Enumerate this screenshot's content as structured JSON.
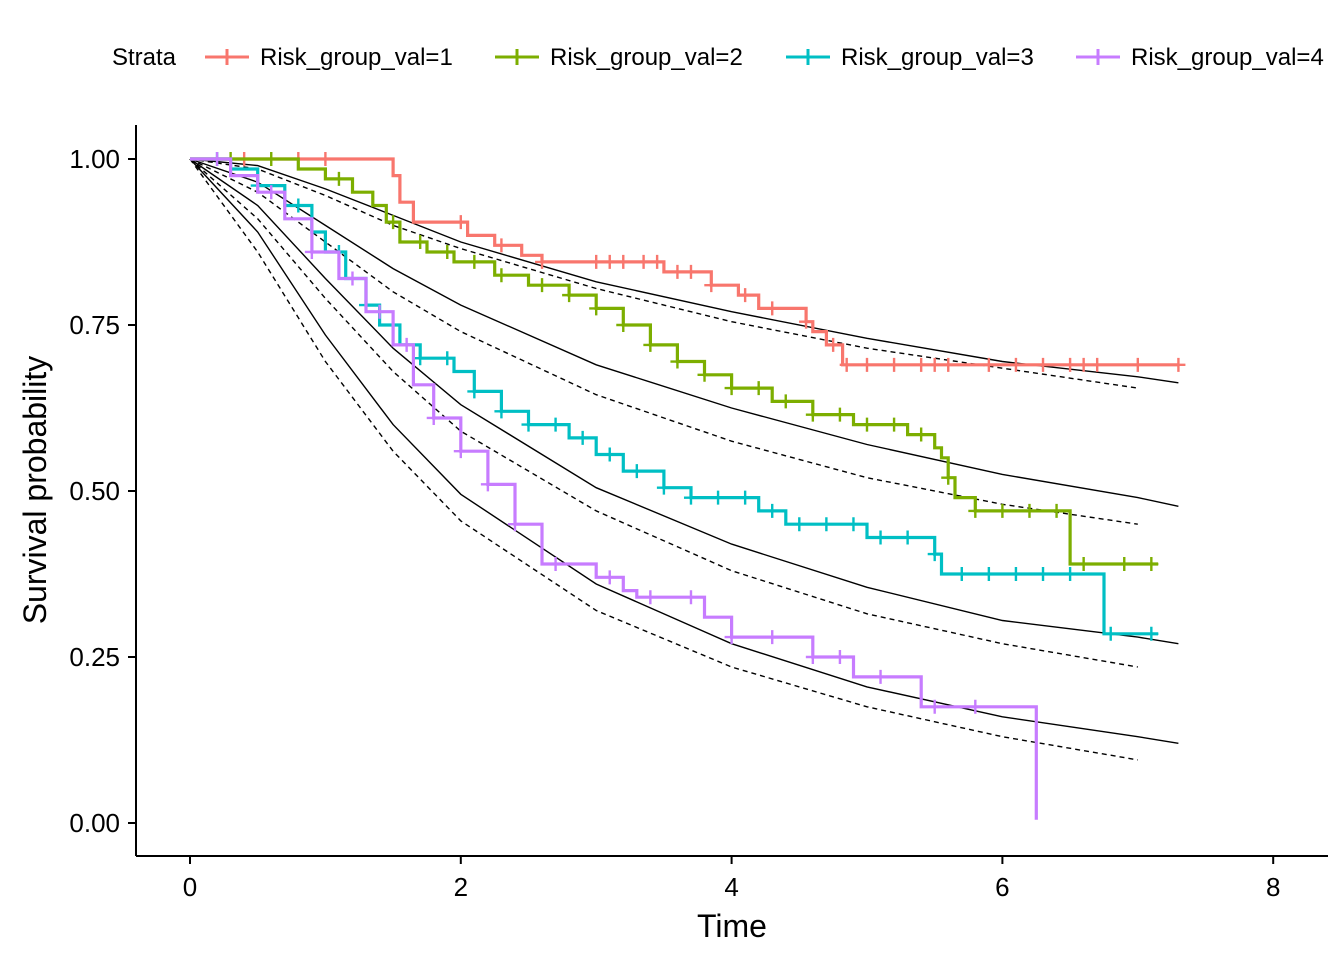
{
  "chart_data": {
    "type": "line",
    "subtype": "kaplan-meier survival curves with fitted parametric curves",
    "xlabel": "Time",
    "ylabel": "Survival probability",
    "xlim": [
      -0.4,
      8.4
    ],
    "ylim": [
      -0.05,
      1.05
    ],
    "x_ticks": [
      0,
      2,
      4,
      6,
      8
    ],
    "x_tick_labels": [
      "0",
      "2",
      "4",
      "6",
      "8"
    ],
    "y_ticks": [
      0,
      0.25,
      0.5,
      0.75,
      1
    ],
    "y_tick_labels": [
      "0.00",
      "0.25",
      "0.50",
      "0.75",
      "1.00"
    ],
    "grid": false,
    "legend": {
      "title": "Strata",
      "placement": "top"
    },
    "series": [
      {
        "name": "Risk_group_val=1",
        "color": "#F8766D",
        "steps": [
          [
            0,
            1
          ],
          [
            1.5,
            0.975
          ],
          [
            1.55,
            0.935
          ],
          [
            1.65,
            0.905
          ],
          [
            2.05,
            0.885
          ],
          [
            2.25,
            0.87
          ],
          [
            2.45,
            0.855
          ],
          [
            2.6,
            0.845
          ],
          [
            3.5,
            0.83
          ],
          [
            3.85,
            0.81
          ],
          [
            4.05,
            0.795
          ],
          [
            4.2,
            0.775
          ],
          [
            4.55,
            0.755
          ],
          [
            4.6,
            0.74
          ],
          [
            4.7,
            0.72
          ],
          [
            4.82,
            0.69
          ],
          [
            7.3,
            0.69
          ]
        ],
        "censor_times": [
          0.4,
          0.8,
          1.0,
          2.0,
          2.3,
          2.6,
          3.0,
          3.1,
          3.2,
          3.35,
          3.45,
          3.6,
          3.7,
          3.85,
          4.1,
          4.3,
          4.55,
          4.75,
          4.85,
          5.0,
          5.2,
          5.4,
          5.5,
          5.6,
          5.9,
          6.1,
          6.3,
          6.5,
          6.6,
          6.7,
          7.0,
          7.3
        ]
      },
      {
        "name": "Risk_group_val=2",
        "color": "#7CAE00",
        "steps": [
          [
            0,
            1
          ],
          [
            0.8,
            0.985
          ],
          [
            1.0,
            0.97
          ],
          [
            1.2,
            0.95
          ],
          [
            1.35,
            0.93
          ],
          [
            1.45,
            0.905
          ],
          [
            1.55,
            0.875
          ],
          [
            1.75,
            0.86
          ],
          [
            1.95,
            0.845
          ],
          [
            2.25,
            0.825
          ],
          [
            2.5,
            0.81
          ],
          [
            2.8,
            0.795
          ],
          [
            3.0,
            0.775
          ],
          [
            3.2,
            0.75
          ],
          [
            3.4,
            0.72
          ],
          [
            3.6,
            0.695
          ],
          [
            3.8,
            0.675
          ],
          [
            4.0,
            0.655
          ],
          [
            4.3,
            0.635
          ],
          [
            4.6,
            0.615
          ],
          [
            4.9,
            0.6
          ],
          [
            5.3,
            0.585
          ],
          [
            5.5,
            0.565
          ],
          [
            5.55,
            0.55
          ],
          [
            5.6,
            0.52
          ],
          [
            5.65,
            0.49
          ],
          [
            5.8,
            0.47
          ],
          [
            6.5,
            0.39
          ],
          [
            7.15,
            0.39
          ]
        ],
        "censor_times": [
          0.3,
          0.6,
          1.1,
          1.5,
          1.7,
          1.9,
          2.1,
          2.3,
          2.6,
          2.8,
          3.0,
          3.2,
          3.4,
          3.6,
          3.8,
          4.0,
          4.2,
          4.4,
          4.6,
          4.8,
          5.0,
          5.2,
          5.4,
          5.6,
          5.8,
          6.0,
          6.2,
          6.4,
          6.6,
          6.9,
          7.1
        ]
      },
      {
        "name": "Risk_group_val=3",
        "color": "#00BFC4",
        "steps": [
          [
            0,
            1
          ],
          [
            0.3,
            0.985
          ],
          [
            0.5,
            0.96
          ],
          [
            0.7,
            0.93
          ],
          [
            0.9,
            0.89
          ],
          [
            1.0,
            0.86
          ],
          [
            1.15,
            0.82
          ],
          [
            1.3,
            0.78
          ],
          [
            1.4,
            0.75
          ],
          [
            1.55,
            0.72
          ],
          [
            1.7,
            0.7
          ],
          [
            1.95,
            0.68
          ],
          [
            2.1,
            0.65
          ],
          [
            2.3,
            0.62
          ],
          [
            2.5,
            0.6
          ],
          [
            2.8,
            0.58
          ],
          [
            3.0,
            0.555
          ],
          [
            3.2,
            0.53
          ],
          [
            3.5,
            0.505
          ],
          [
            3.7,
            0.49
          ],
          [
            4.2,
            0.47
          ],
          [
            4.4,
            0.45
          ],
          [
            5.0,
            0.43
          ],
          [
            5.5,
            0.405
          ],
          [
            5.55,
            0.375
          ],
          [
            6.75,
            0.285
          ],
          [
            7.15,
            0.285
          ]
        ],
        "censor_times": [
          0.2,
          0.5,
          0.8,
          1.1,
          1.3,
          1.5,
          1.7,
          1.9,
          2.1,
          2.3,
          2.5,
          2.7,
          2.9,
          3.1,
          3.3,
          3.5,
          3.7,
          3.9,
          4.1,
          4.3,
          4.5,
          4.7,
          4.9,
          5.1,
          5.3,
          5.5,
          5.7,
          5.9,
          6.1,
          6.3,
          6.5,
          6.8,
          7.1
        ]
      },
      {
        "name": "Risk_group_val=4",
        "color": "#C77CFF",
        "steps": [
          [
            0,
            1
          ],
          [
            0.3,
            0.975
          ],
          [
            0.5,
            0.95
          ],
          [
            0.7,
            0.91
          ],
          [
            0.9,
            0.86
          ],
          [
            1.1,
            0.82
          ],
          [
            1.3,
            0.77
          ],
          [
            1.5,
            0.72
          ],
          [
            1.65,
            0.66
          ],
          [
            1.8,
            0.61
          ],
          [
            2.0,
            0.56
          ],
          [
            2.2,
            0.51
          ],
          [
            2.4,
            0.45
          ],
          [
            2.6,
            0.39
          ],
          [
            3.0,
            0.37
          ],
          [
            3.2,
            0.35
          ],
          [
            3.3,
            0.34
          ],
          [
            3.8,
            0.31
          ],
          [
            4.0,
            0.28
          ],
          [
            4.6,
            0.25
          ],
          [
            4.9,
            0.22
          ],
          [
            5.4,
            0.175
          ],
          [
            6.25,
            0.005
          ]
        ],
        "censor_times": [
          0.2,
          0.6,
          0.9,
          1.2,
          1.4,
          1.6,
          1.8,
          2.0,
          2.2,
          2.4,
          2.7,
          3.1,
          3.4,
          3.7,
          4.0,
          4.3,
          4.6,
          4.8,
          5.1,
          5.5,
          5.8
        ]
      }
    ],
    "fitted_curves": [
      {
        "style": "solid",
        "x_max": 7.3,
        "points": [
          [
            0,
            1
          ],
          [
            0.5,
            0.99
          ],
          [
            1,
            0.955
          ],
          [
            1.5,
            0.915
          ],
          [
            2,
            0.875
          ],
          [
            3,
            0.815
          ],
          [
            4,
            0.77
          ],
          [
            5,
            0.73
          ],
          [
            6,
            0.695
          ],
          [
            7,
            0.672
          ],
          [
            7.3,
            0.663
          ]
        ]
      },
      {
        "style": "dashed",
        "x_max": 7.0,
        "points": [
          [
            0,
            1
          ],
          [
            0.5,
            0.985
          ],
          [
            1,
            0.945
          ],
          [
            1.5,
            0.9
          ],
          [
            2,
            0.865
          ],
          [
            3,
            0.805
          ],
          [
            4,
            0.755
          ],
          [
            5,
            0.715
          ],
          [
            6,
            0.685
          ],
          [
            7,
            0.655
          ]
        ]
      },
      {
        "style": "solid",
        "x_max": 7.3,
        "points": [
          [
            0,
            1
          ],
          [
            0.5,
            0.965
          ],
          [
            1,
            0.9
          ],
          [
            1.5,
            0.835
          ],
          [
            2,
            0.78
          ],
          [
            3,
            0.69
          ],
          [
            4,
            0.625
          ],
          [
            5,
            0.57
          ],
          [
            6,
            0.525
          ],
          [
            7,
            0.49
          ],
          [
            7.3,
            0.477
          ]
        ]
      },
      {
        "style": "dashed",
        "x_max": 7.0,
        "points": [
          [
            0,
            1
          ],
          [
            0.5,
            0.95
          ],
          [
            1,
            0.875
          ],
          [
            1.5,
            0.8
          ],
          [
            2,
            0.74
          ],
          [
            3,
            0.645
          ],
          [
            4,
            0.575
          ],
          [
            5,
            0.52
          ],
          [
            6,
            0.48
          ],
          [
            7,
            0.45
          ]
        ]
      },
      {
        "style": "solid",
        "x_max": 7.3,
        "points": [
          [
            0,
            1
          ],
          [
            0.5,
            0.93
          ],
          [
            1,
            0.82
          ],
          [
            1.5,
            0.715
          ],
          [
            2,
            0.63
          ],
          [
            3,
            0.505
          ],
          [
            4,
            0.42
          ],
          [
            5,
            0.355
          ],
          [
            6,
            0.305
          ],
          [
            7,
            0.28
          ],
          [
            7.3,
            0.27
          ]
        ]
      },
      {
        "style": "dashed",
        "x_max": 7.0,
        "points": [
          [
            0,
            1
          ],
          [
            0.5,
            0.91
          ],
          [
            1,
            0.79
          ],
          [
            1.5,
            0.68
          ],
          [
            2,
            0.59
          ],
          [
            3,
            0.47
          ],
          [
            4,
            0.38
          ],
          [
            5,
            0.315
          ],
          [
            6,
            0.27
          ],
          [
            7,
            0.235
          ]
        ]
      },
      {
        "style": "solid",
        "x_max": 7.3,
        "points": [
          [
            0,
            1
          ],
          [
            0.5,
            0.89
          ],
          [
            1,
            0.735
          ],
          [
            1.5,
            0.6
          ],
          [
            2,
            0.495
          ],
          [
            3,
            0.36
          ],
          [
            4,
            0.27
          ],
          [
            5,
            0.205
          ],
          [
            6,
            0.16
          ],
          [
            7,
            0.13
          ],
          [
            7.3,
            0.12
          ]
        ]
      },
      {
        "style": "dashed",
        "x_max": 7.0,
        "points": [
          [
            0,
            1
          ],
          [
            0.5,
            0.86
          ],
          [
            1,
            0.695
          ],
          [
            1.5,
            0.56
          ],
          [
            2,
            0.455
          ],
          [
            3,
            0.32
          ],
          [
            4,
            0.235
          ],
          [
            5,
            0.175
          ],
          [
            6,
            0.13
          ],
          [
            7,
            0.095
          ]
        ]
      }
    ]
  }
}
